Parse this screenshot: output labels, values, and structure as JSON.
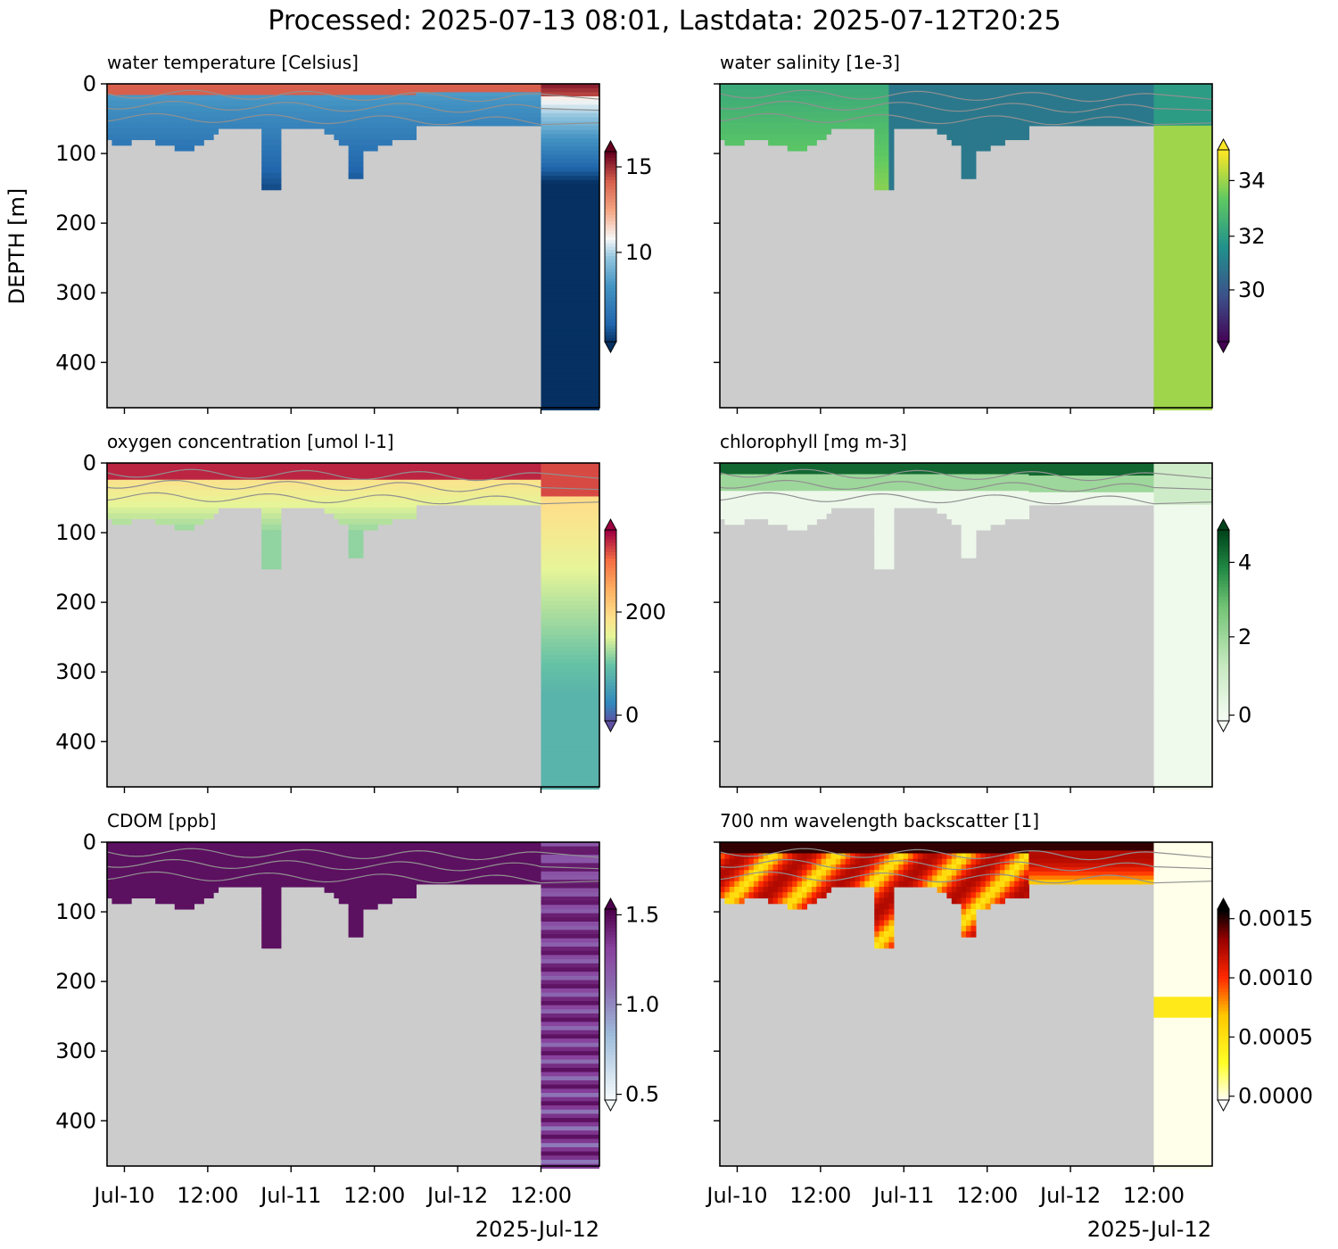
{
  "suptitle": "Processed: 2025-07-13 08:01, Lastdata: 2025-07-12T20:25",
  "shared_y_label": "DEPTH [m]",
  "date_footer": "2025-Jul-12",
  "chart_data": [
    {
      "type": "heatmap",
      "title": "water temperature [Celsius]",
      "ylabel": "DEPTH [m]",
      "xlabel": "",
      "x_ticks": [
        "Jul-10",
        "12:00",
        "Jul-11",
        "12:00",
        "Jul-12",
        "12:00"
      ],
      "x_range": [
        "2025-07-09T21:30",
        "2025-07-12T20:25"
      ],
      "y_ticks": [
        0,
        100,
        200,
        300,
        400
      ],
      "ylim": [
        465,
        0
      ],
      "colorbar": {
        "colormap": "RdBu_r",
        "ticks": [
          "10",
          "15"
        ],
        "range": [
          5.5,
          16
        ],
        "extend": "both"
      },
      "no_data_fill": "#cccccc",
      "contours": "gray isolines (no labels)"
    },
    {
      "type": "heatmap",
      "title": "water salinity [1e-3]",
      "ylabel": "",
      "xlabel": "",
      "x_ticks": [
        "Jul-10",
        "12:00",
        "Jul-11",
        "12:00",
        "Jul-12",
        "12:00"
      ],
      "x_range": [
        "2025-07-09T21:30",
        "2025-07-12T20:25"
      ],
      "y_ticks": [
        0,
        100,
        200,
        300,
        400
      ],
      "ylim": [
        465,
        0
      ],
      "colorbar": {
        "colormap": "viridis",
        "ticks": [
          "30",
          "32",
          "34"
        ],
        "range": [
          28.5,
          35
        ],
        "extend": "both"
      },
      "no_data_fill": "#cccccc",
      "contours": "gray isolines (no labels)"
    },
    {
      "type": "heatmap",
      "title": "oxygen concentration [umol l-1]",
      "ylabel": "",
      "xlabel": "",
      "x_ticks": [
        "Jul-10",
        "12:00",
        "Jul-11",
        "12:00",
        "Jul-12",
        "12:00"
      ],
      "x_range": [
        "2025-07-09T21:30",
        "2025-07-12T20:25"
      ],
      "y_ticks": [
        0,
        100,
        200,
        300,
        400
      ],
      "ylim": [
        465,
        0
      ],
      "colorbar": {
        "colormap": "Spectral_r",
        "ticks": [
          "0",
          "200"
        ],
        "range": [
          0,
          360
        ],
        "extend": "both"
      },
      "no_data_fill": "#cccccc",
      "contours": "gray isolines (no labels)"
    },
    {
      "type": "heatmap",
      "title": "chlorophyll [mg m-3]",
      "ylabel": "",
      "xlabel": "",
      "x_ticks": [
        "Jul-10",
        "12:00",
        "Jul-11",
        "12:00",
        "Jul-12",
        "12:00"
      ],
      "x_range": [
        "2025-07-09T21:30",
        "2025-07-12T20:25"
      ],
      "y_ticks": [
        0,
        100,
        200,
        300,
        400
      ],
      "ylim": [
        465,
        0
      ],
      "colorbar": {
        "colormap": "Greens",
        "ticks": [
          "0",
          "2",
          "4"
        ],
        "range": [
          0,
          5
        ],
        "extend": "both"
      },
      "no_data_fill": "#cccccc",
      "contours": "gray isolines (no labels)"
    },
    {
      "type": "heatmap",
      "title": "CDOM [ppb]",
      "ylabel": "",
      "xlabel": "",
      "x_ticks": [
        "Jul-10",
        "12:00",
        "Jul-11",
        "12:00",
        "Jul-12",
        "12:00"
      ],
      "x_range": [
        "2025-07-09T21:30",
        "2025-07-12T20:25"
      ],
      "y_ticks": [
        0,
        100,
        200,
        300,
        400
      ],
      "ylim": [
        465,
        0
      ],
      "colorbar": {
        "colormap": "BuPu",
        "ticks": [
          "0.5",
          "1.0",
          "1.5"
        ],
        "range": [
          0.5,
          1.5
        ],
        "extend": "both"
      },
      "no_data_fill": "#cccccc",
      "contours": "gray isolines (no labels)"
    },
    {
      "type": "heatmap",
      "title": "700 nm wavelength backscatter [1]",
      "ylabel": "",
      "xlabel": "",
      "x_ticks": [
        "Jul-10",
        "12:00",
        "Jul-11",
        "12:00",
        "Jul-12",
        "12:00"
      ],
      "x_range": [
        "2025-07-09T21:30",
        "2025-07-12T20:25"
      ],
      "y_ticks": [
        0,
        100,
        200,
        300,
        400
      ],
      "ylim": [
        465,
        0
      ],
      "colorbar": {
        "colormap": "hot_r",
        "ticks": [
          "0.0000",
          "0.0005",
          "0.0010",
          "0.0015"
        ],
        "range": [
          0,
          0.0015
        ],
        "extend": "both"
      },
      "no_data_fill": "#cccccc",
      "contours": "gray isolines (no labels)"
    }
  ]
}
